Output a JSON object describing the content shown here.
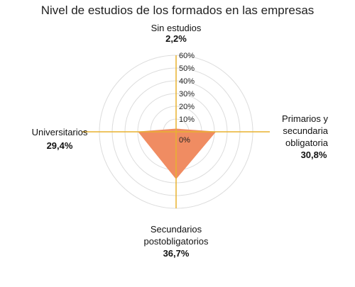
{
  "chart_data": {
    "type": "radar",
    "title": "Nivel de estudios de los formados en las empresas",
    "categories": [
      {
        "label_lines": [
          "Sin estudios"
        ],
        "value_label": "2,2%"
      },
      {
        "label_lines": [
          "Primarios y",
          "secundaria",
          "obligatoria"
        ],
        "value_label": "30,8%"
      },
      {
        "label_lines": [
          "Secundarios",
          "postobligatorios"
        ],
        "value_label": "36,7%"
      },
      {
        "label_lines": [
          "Universitarios"
        ],
        "value_label": "29,4%"
      }
    ],
    "values": [
      2.2,
      30.8,
      36.7,
      29.4
    ],
    "rlim": [
      0,
      60
    ],
    "ticks": [
      0,
      10,
      20,
      30,
      40,
      50,
      60
    ],
    "tick_labels": [
      "0%",
      "10%",
      "20%",
      "30%",
      "40%",
      "50%",
      "60%"
    ],
    "grid": true,
    "legend": "none"
  },
  "colors": {
    "fill": "#f08c62",
    "axis": "#e8b22f",
    "grid": "#dcdcdc"
  }
}
